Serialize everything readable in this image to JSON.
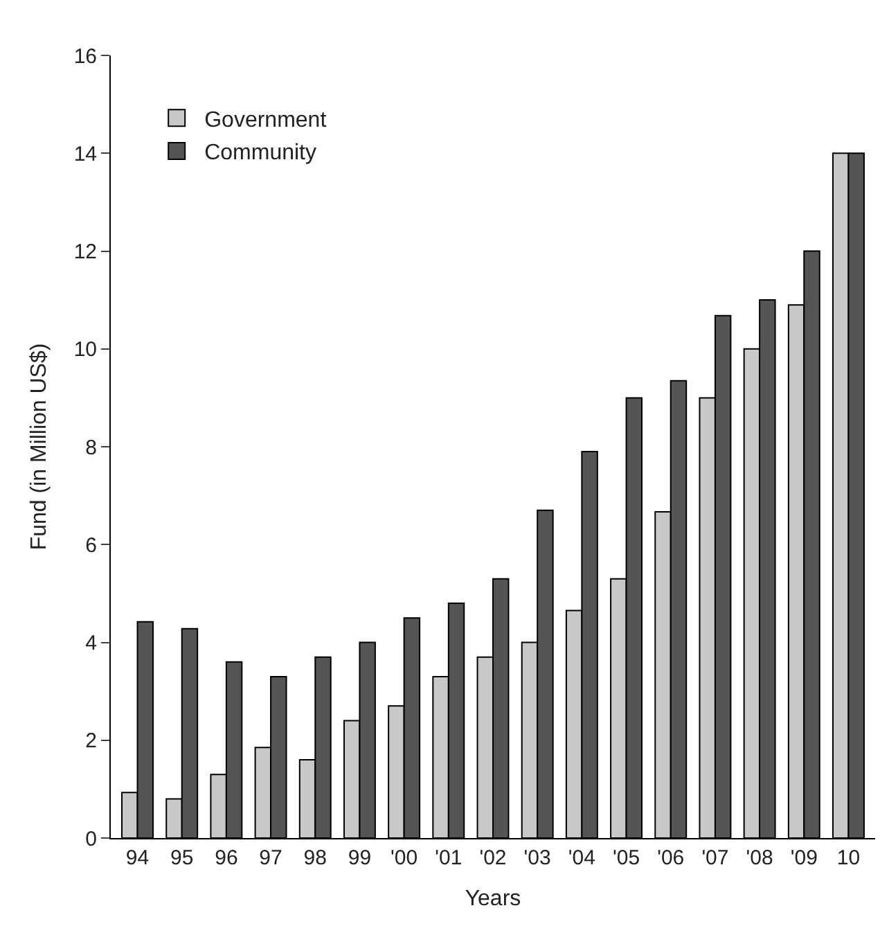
{
  "chart_data": {
    "type": "bar",
    "xlabel": "Years",
    "ylabel": "Fund (in Million US$)",
    "categories": [
      "94",
      "95",
      "96",
      "97",
      "98",
      "99",
      "'00",
      "'01",
      "'02",
      "'03",
      "'04",
      "'05",
      "'06",
      "'07",
      "'08",
      "'09",
      "10"
    ],
    "series": [
      {
        "name": "Government",
        "color": "#c8c8c8",
        "values": [
          0.93,
          0.8,
          1.3,
          1.85,
          1.6,
          2.4,
          2.7,
          3.3,
          3.7,
          4.0,
          4.65,
          5.3,
          6.67,
          9.0,
          10.0,
          10.9,
          14.0
        ]
      },
      {
        "name": "Community",
        "color": "#555555",
        "values": [
          4.42,
          4.28,
          3.6,
          3.3,
          3.7,
          4.0,
          4.5,
          4.8,
          5.3,
          6.7,
          7.9,
          9.0,
          9.35,
          10.68,
          11.0,
          12.0,
          14.0
        ]
      }
    ],
    "ylim": [
      0,
      16
    ],
    "yticks": [
      0,
      2,
      4,
      6,
      8,
      10,
      12,
      14,
      16
    ],
    "grid": false,
    "legend": "top left"
  }
}
